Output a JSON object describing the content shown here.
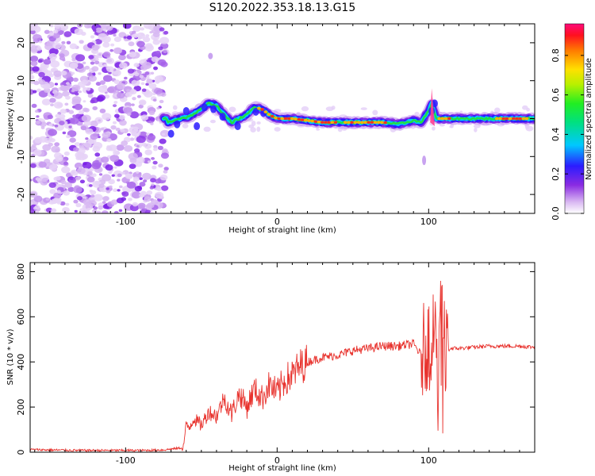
{
  "title": "S120.2022.353.18.13.G15",
  "chart_data": [
    {
      "type": "heatmap",
      "xlabel": "Height of straight line (km)",
      "ylabel": "Frequency (Hz)",
      "xlim": [
        -163,
        170
      ],
      "ylim": [
        -25,
        25
      ],
      "x_ticks": [
        -100,
        0,
        100
      ],
      "y_ticks": [
        -20,
        -10,
        0,
        10,
        20
      ],
      "colorbar": {
        "label": "Normalized spectral amplitude",
        "range": [
          0.0,
          0.96
        ],
        "ticks": [
          "0.0",
          "0.2",
          "0.4",
          "0.6",
          "0.8"
        ],
        "tick_values": [
          0.0,
          0.2,
          0.4,
          0.6,
          0.8
        ]
      },
      "ridge_line": {
        "description_values": "approximate dominant frequency (Hz) vs height (km)",
        "x": [
          -72,
          -65,
          -58,
          -52,
          -45,
          -40,
          -35,
          -30,
          -25,
          -20,
          -15,
          -10,
          -5,
          0,
          10,
          20,
          30,
          40,
          50,
          60,
          70,
          80,
          85,
          90,
          95,
          100,
          102,
          105,
          120,
          140,
          160,
          170
        ],
        "y": [
          -1,
          0,
          0.5,
          2,
          4,
          3.5,
          1,
          -1,
          0,
          1,
          3,
          2.5,
          1,
          0,
          0,
          -0.5,
          -1,
          -1,
          -1,
          -1,
          -1,
          -1.5,
          -1,
          -0.5,
          -1,
          2,
          4,
          0,
          0,
          0,
          0,
          0
        ]
      },
      "noise_region_x": [
        -163,
        -73
      ]
    },
    {
      "type": "line",
      "xlabel": "Height of straight line (km)",
      "ylabel": "SNR (10 * v/v)",
      "xlim": [
        -163,
        170
      ],
      "ylim": [
        0,
        840
      ],
      "x_ticks": [
        -100,
        0,
        100
      ],
      "y_ticks": [
        0,
        200,
        400,
        600,
        800
      ],
      "color": "#e8332e",
      "series": [
        {
          "x": [
            -163,
            -150,
            -130,
            -110,
            -90,
            -75,
            -62,
            -60,
            -58,
            -55,
            -50,
            -45,
            -40,
            -35,
            -30,
            -25,
            -20,
            -15,
            -10,
            -5,
            0,
            5,
            10,
            15,
            20,
            25,
            30,
            40,
            50,
            60,
            70,
            80,
            90,
            95,
            100,
            102,
            104,
            106,
            108,
            110,
            112,
            115,
            120,
            130,
            140,
            150,
            160,
            170
          ],
          "y": [
            12,
            10,
            8,
            8,
            8,
            10,
            20,
            120,
            110,
            150,
            120,
            180,
            160,
            240,
            170,
            260,
            200,
            280,
            240,
            300,
            260,
            320,
            340,
            380,
            400,
            410,
            420,
            430,
            450,
            460,
            470,
            470,
            480,
            430,
            500,
            380,
            600,
            250,
            780,
            300,
            450,
            460,
            460,
            465,
            470,
            470,
            470,
            465
          ]
        }
      ]
    }
  ]
}
